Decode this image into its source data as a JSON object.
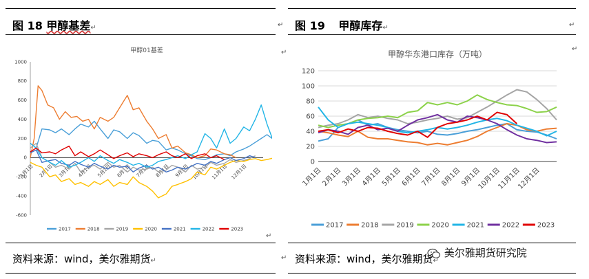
{
  "left": {
    "fig_label": "图 18",
    "fig_title": "甲醇基差",
    "source": "资料来源：wind，美尔雅期货",
    "chart_title": "甲醇01基差"
  },
  "right": {
    "fig_label": "图 19",
    "fig_title": "甲醇库存",
    "source": "资料来源：wind，美尔雅期货",
    "chart_title": "甲醇华东港口库存（万吨）"
  },
  "watermark": "美尔雅期货研究院",
  "colors": {
    "2017": "#4a9fd8",
    "2018": "#ed7d31",
    "2019": "#a5a5a5",
    "2020": "#ffc000",
    "2021": "#4472c4",
    "2022": "#22b5e6",
    "2023": "#e00000",
    "2020_right": "#8cd24a",
    "2021_right": "#22b5e6",
    "2022_right": "#7030a0"
  },
  "chart_data": [
    {
      "type": "line",
      "title": "甲醇01基差",
      "xlabel": "",
      "ylabel": "",
      "ylim": [
        -600,
        1000
      ],
      "yticks": [
        -600,
        -400,
        -200,
        0,
        200,
        400,
        600,
        800,
        1000
      ],
      "x_ticklabels": [
        "1月1日",
        "2月1日",
        "3月1日",
        "4月1日",
        "5月1日",
        "6月1日",
        "7月1日",
        "8月1日",
        "9月1日",
        "10月1日",
        "11月1日",
        "12月1日"
      ],
      "legend": "bottom",
      "series": [
        {
          "name": "2017",
          "x": [
            0,
            0.3,
            0.6,
            1,
            1.3,
            1.6,
            2,
            2.3,
            2.6,
            3,
            3.3,
            3.6,
            4,
            4.3,
            4.6,
            5,
            5.3,
            5.6,
            6,
            6.3,
            6.6,
            7,
            7.3,
            7.6,
            8,
            8.3,
            8.6,
            9,
            9.3,
            9.6,
            10,
            10.3,
            10.6,
            11,
            11.3,
            11.6,
            11.9,
            12.2,
            12.6
          ],
          "y": [
            150,
            100,
            300,
            290,
            260,
            300,
            240,
            300,
            350,
            320,
            380,
            300,
            200,
            290,
            270,
            200,
            260,
            230,
            150,
            180,
            170,
            80,
            100,
            80,
            40,
            20,
            -10,
            -20,
            0,
            30,
            40,
            20,
            60,
            90,
            120,
            160,
            200,
            240,
            180
          ]
        },
        {
          "name": "2018",
          "x": [
            0,
            0.2,
            0.4,
            0.6,
            0.9,
            1.2,
            1.5,
            1.8,
            2.1,
            2.4,
            2.7,
            3,
            3.3,
            3.6,
            4,
            4.3,
            4.6,
            5,
            5.3,
            5.6,
            6,
            6.3,
            6.6,
            7,
            7.3,
            7.6,
            8,
            8.3,
            8.6,
            9,
            9.3,
            9.6,
            10,
            10.3,
            10.6
          ],
          "y": [
            0,
            200,
            750,
            700,
            550,
            520,
            400,
            480,
            420,
            430,
            380,
            400,
            300,
            420,
            380,
            420,
            520,
            650,
            500,
            520,
            380,
            300,
            200,
            240,
            100,
            120,
            50,
            30,
            0,
            20,
            90,
            80,
            40,
            30,
            0
          ]
        },
        {
          "name": "2019",
          "x": [
            0,
            0.3,
            0.6,
            1,
            1.3,
            1.6,
            2,
            2.3,
            2.6,
            3,
            3.3,
            3.6,
            4,
            4.3,
            4.6,
            5,
            5.3,
            5.6,
            6,
            6.3,
            6.6,
            7,
            7.3,
            7.6,
            8,
            8.3,
            8.6,
            9,
            9.3,
            9.6,
            10,
            10.3,
            10.6,
            11,
            11.3,
            11.6
          ],
          "y": [
            100,
            150,
            0,
            -50,
            -100,
            -80,
            -120,
            -60,
            -150,
            -100,
            -80,
            -120,
            -50,
            -100,
            -80,
            -150,
            -100,
            -130,
            -120,
            -100,
            -150,
            -130,
            -80,
            -100,
            -150,
            -80,
            -120,
            -100,
            -50,
            -80,
            -60,
            -20,
            -50,
            -30,
            -10,
            20
          ]
        },
        {
          "name": "2020",
          "x": [
            0,
            0.3,
            0.6,
            1,
            1.3,
            1.6,
            2,
            2.3,
            2.6,
            3,
            3.3,
            3.6,
            4,
            4.3,
            4.6,
            5,
            5.3,
            5.6,
            6,
            6.3,
            6.6,
            7,
            7.3,
            7.6,
            8,
            8.3,
            8.6,
            9,
            9.3,
            9.6,
            10,
            10.3,
            10.6,
            11,
            11.3,
            11.6,
            11.9,
            12.2,
            12.6
          ],
          "y": [
            -50,
            -80,
            -100,
            -200,
            -180,
            -250,
            -220,
            -280,
            -260,
            -300,
            -250,
            -280,
            -230,
            -300,
            -260,
            -280,
            -200,
            -260,
            -300,
            -350,
            -420,
            -380,
            -300,
            -280,
            -250,
            -220,
            -150,
            -180,
            -100,
            -120,
            -80,
            -50,
            -30,
            -40,
            -20,
            -10,
            -30,
            -20,
            0
          ]
        },
        {
          "name": "2021",
          "x": [
            0,
            0.3,
            0.6,
            1,
            1.3,
            1.6,
            2,
            2.3,
            2.6,
            3,
            3.3,
            3.6,
            4,
            4.3,
            4.6,
            5,
            5.3,
            5.6,
            6,
            6.3,
            6.6,
            7,
            7.3,
            7.6,
            8,
            8.3,
            8.6,
            9,
            9.3,
            9.6,
            10,
            10.3,
            10.6,
            11,
            11.3,
            11.6
          ],
          "y": [
            50,
            80,
            -50,
            -30,
            -20,
            -60,
            -80,
            -40,
            -70,
            -100,
            -60,
            -90,
            -120,
            -80,
            -100,
            -90,
            -150,
            -110,
            -80,
            -120,
            -100,
            -150,
            -130,
            -100,
            -120,
            -90,
            -60,
            -80,
            -40,
            -60,
            -20,
            0,
            -30,
            -10,
            20,
            0
          ]
        },
        {
          "name": "2022",
          "x": [
            0,
            0.3,
            0.6,
            1,
            1.3,
            1.6,
            2,
            2.3,
            2.6,
            3,
            3.3,
            3.6,
            4,
            4.3,
            4.6,
            5,
            5.3,
            5.6,
            6,
            6.3,
            6.6,
            7,
            7.3,
            7.6,
            8,
            8.3,
            8.6,
            9,
            9.3,
            9.6,
            10,
            10.3,
            10.6,
            11,
            11.3,
            11.6,
            11.9,
            12.2,
            12.6
          ],
          "y": [
            150,
            100,
            0,
            -50,
            -80,
            -30,
            -100,
            -80,
            -50,
            0,
            -40,
            20,
            -30,
            -60,
            -20,
            -50,
            -80,
            -60,
            -100,
            -80,
            -40,
            -20,
            0,
            20,
            -10,
            30,
            60,
            250,
            200,
            100,
            300,
            150,
            200,
            320,
            280,
            400,
            550,
            350,
            130
          ]
        },
        {
          "name": "2023",
          "x": [
            0,
            0.3,
            0.6,
            1,
            1.3,
            1.6,
            2,
            2.3,
            2.6,
            3,
            3.3,
            3.6,
            4,
            4.3,
            4.6,
            5,
            5.3,
            5.6,
            6,
            6.3,
            6.6,
            7,
            7.3,
            7.6,
            8,
            8.3,
            8.6,
            9,
            9.3,
            9.6,
            10
          ],
          "y": [
            60,
            100,
            50,
            60,
            40,
            80,
            120,
            20,
            60,
            10,
            40,
            80,
            30,
            -10,
            20,
            50,
            10,
            40,
            20,
            0,
            30,
            60,
            20,
            0,
            40,
            -10,
            20,
            40,
            0,
            20,
            -20
          ]
        }
      ]
    },
    {
      "type": "line",
      "title": "甲醇华东港口库存（万吨）",
      "xlabel": "",
      "ylabel": "",
      "ylim": [
        0,
        120
      ],
      "yticks": [
        0,
        20,
        40,
        60,
        80,
        100,
        120
      ],
      "x_ticklabels": [
        "1月1日",
        "2月1日",
        "3月1日",
        "4月1日",
        "5月1日",
        "6月1日",
        "7月1日",
        "8月1日",
        "9月1日",
        "10月1日",
        "11月1日",
        "12月1日"
      ],
      "legend": "bottom",
      "series": [
        {
          "name": "2017",
          "x": [
            0,
            0.5,
            1,
            1.5,
            2,
            2.5,
            3,
            3.5,
            4,
            4.5,
            5,
            5.5,
            6,
            6.5,
            7,
            7.5,
            8,
            8.5,
            9,
            9.5,
            10,
            10.5,
            11,
            11.5,
            12
          ],
          "y": [
            27,
            30,
            45,
            50,
            55,
            48,
            50,
            45,
            42,
            40,
            38,
            40,
            36,
            35,
            37,
            40,
            42,
            45,
            48,
            50,
            42,
            40,
            39,
            35,
            30
          ]
        },
        {
          "name": "2018",
          "x": [
            0,
            0.5,
            1,
            1.5,
            2,
            2.5,
            3,
            3.5,
            4,
            4.5,
            5,
            5.5,
            6,
            6.5,
            7,
            7.5,
            8,
            8.5,
            9,
            9.5,
            10,
            10.5,
            11,
            11.5,
            12
          ],
          "y": [
            40,
            38,
            35,
            33,
            40,
            32,
            30,
            30,
            28,
            26,
            25,
            22,
            24,
            22,
            25,
            28,
            33,
            40,
            45,
            50,
            48,
            42,
            40,
            43,
            44
          ]
        },
        {
          "name": "2019",
          "x": [
            0,
            0.5,
            1,
            1.5,
            2,
            2.5,
            3,
            3.5,
            4,
            4.5,
            5,
            5.5,
            6,
            6.5,
            7,
            7.5,
            8,
            8.5,
            9,
            9.5,
            10,
            10.5,
            11,
            11.5,
            12
          ],
          "y": [
            45,
            48,
            50,
            55,
            62,
            58,
            60,
            57,
            55,
            50,
            52,
            55,
            57,
            60,
            56,
            58,
            65,
            72,
            80,
            88,
            95,
            92,
            82,
            70,
            55
          ]
        },
        {
          "name": "2020",
          "x": [
            0,
            0.5,
            1,
            1.5,
            2,
            2.5,
            3,
            3.5,
            4,
            4.5,
            5,
            5.5,
            6,
            6.5,
            7,
            7.5,
            8,
            8.5,
            9,
            9.5,
            10,
            10.5,
            11,
            11.5,
            12
          ],
          "y": [
            48,
            45,
            48,
            50,
            55,
            57,
            58,
            60,
            58,
            65,
            67,
            78,
            75,
            78,
            75,
            80,
            88,
            82,
            78,
            75,
            74,
            70,
            65,
            66,
            72
          ]
        },
        {
          "name": "2021",
          "x": [
            0,
            0.5,
            1,
            1.5,
            2,
            2.5,
            3,
            3.5,
            4,
            4.5,
            5,
            5.5,
            6,
            6.5,
            7,
            7.5,
            8,
            8.5,
            9,
            9.5,
            10,
            10.5,
            11,
            11.5,
            12
          ],
          "y": [
            72,
            55,
            45,
            50,
            52,
            50,
            48,
            45,
            40,
            38,
            40,
            42,
            45,
            43,
            45,
            48,
            52,
            55,
            57,
            54,
            48,
            44,
            40,
            34,
            40
          ]
        },
        {
          "name": "2022",
          "x": [
            0,
            0.5,
            1,
            1.5,
            2,
            2.5,
            3,
            3.5,
            4,
            4.5,
            5,
            5.5,
            6,
            6.5,
            7,
            7.5,
            8,
            8.5,
            9,
            9.5,
            10,
            10.5,
            11,
            11.5,
            12
          ],
          "y": [
            38,
            42,
            40,
            36,
            45,
            48,
            42,
            44,
            40,
            48,
            55,
            58,
            62,
            55,
            52,
            60,
            58,
            55,
            50,
            42,
            35,
            30,
            28,
            25,
            26
          ]
        },
        {
          "name": "2023",
          "x": [
            0,
            0.5,
            1,
            1.5,
            2,
            2.5,
            3,
            3.5,
            4,
            4.5,
            5,
            5.5,
            6,
            6.5,
            7,
            7.5,
            8,
            8.5,
            9,
            9.5,
            10
          ],
          "y": [
            40,
            42,
            38,
            43,
            40,
            45,
            44,
            40,
            37,
            35,
            40,
            32,
            45,
            50,
            52,
            55,
            60,
            55,
            65,
            62,
            50
          ]
        }
      ]
    }
  ]
}
